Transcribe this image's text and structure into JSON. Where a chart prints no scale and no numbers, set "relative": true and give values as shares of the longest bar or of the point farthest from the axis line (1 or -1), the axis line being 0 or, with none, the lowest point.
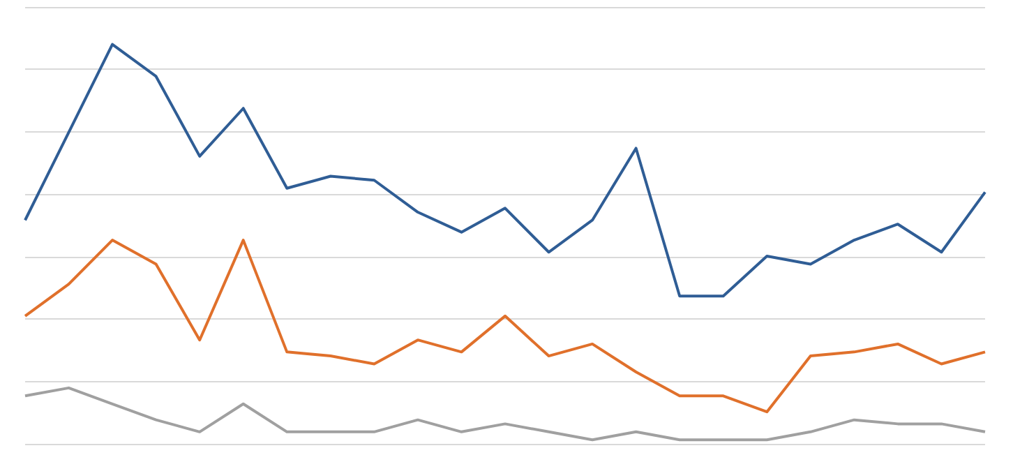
{
  "chart_data": {
    "type": "line",
    "relative": true,
    "grid": "y",
    "marker": "none",
    "categories": [
      null,
      null,
      null,
      null,
      null,
      null,
      null,
      null,
      null,
      null,
      null,
      null,
      null,
      null,
      null,
      null,
      null,
      null,
      null,
      null,
      null,
      null,
      null
    ],
    "series": [
      {
        "color": "#2f5d95",
        "values": [
          0.56,
          0.78,
          1.0,
          0.92,
          0.72,
          0.84,
          0.64,
          0.67,
          0.66,
          0.58,
          0.53,
          0.59,
          0.48,
          0.56,
          0.74,
          0.37,
          0.37,
          0.47,
          0.45,
          0.51,
          0.55,
          0.48,
          0.63
        ]
      },
      {
        "color": "#e0702b",
        "values": [
          0.32,
          0.4,
          0.51,
          0.45,
          0.26,
          0.51,
          0.23,
          0.22,
          0.2,
          0.26,
          0.23,
          0.32,
          0.22,
          0.25,
          0.18,
          0.12,
          0.12,
          0.08,
          0.22,
          0.23,
          0.25,
          0.2,
          0.23
        ]
      },
      {
        "color": "#a0a0a0",
        "values": [
          0.12,
          0.14,
          0.1,
          0.06,
          0.03,
          0.1,
          0.03,
          0.03,
          0.03,
          0.06,
          0.03,
          0.05,
          0.03,
          0.01,
          0.03,
          0.01,
          0.01,
          0.01,
          0.03,
          0.06,
          0.05,
          0.05,
          0.03
        ]
      }
    ]
  }
}
